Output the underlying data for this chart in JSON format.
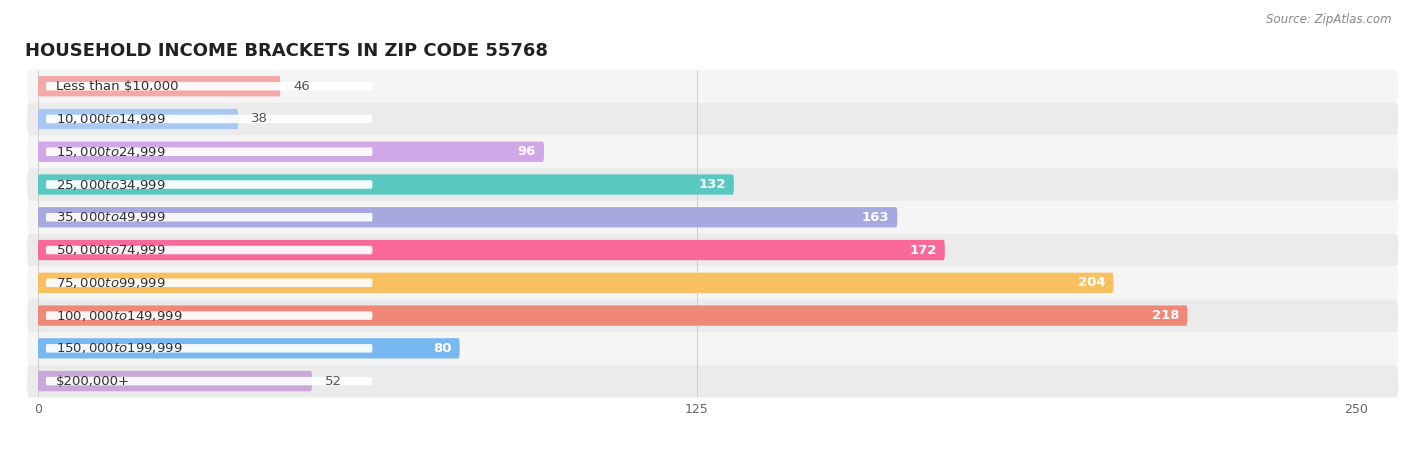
{
  "title": "HOUSEHOLD INCOME BRACKETS IN ZIP CODE 55768",
  "source": "Source: ZipAtlas.com",
  "categories": [
    "Less than $10,000",
    "$10,000 to $14,999",
    "$15,000 to $24,999",
    "$25,000 to $34,999",
    "$35,000 to $49,999",
    "$50,000 to $74,999",
    "$75,000 to $99,999",
    "$100,000 to $149,999",
    "$150,000 to $199,999",
    "$200,000+"
  ],
  "values": [
    46,
    38,
    96,
    132,
    163,
    172,
    204,
    218,
    80,
    52
  ],
  "bar_colors": [
    "#F4A8A8",
    "#A8C8F4",
    "#D0A8E8",
    "#58C8C0",
    "#A8A8E0",
    "#F86898",
    "#F8C060",
    "#F08878",
    "#78B8F0",
    "#C8A8D8"
  ],
  "xlim": [
    0,
    250
  ],
  "xticks": [
    0,
    125,
    250
  ],
  "bar_height": 0.62,
  "row_bg_light": "#f5f5f5",
  "row_bg_dark": "#ebebeb",
  "title_fontsize": 13,
  "label_fontsize": 9.5,
  "value_fontsize": 9.5,
  "value_threshold_inside": 80
}
